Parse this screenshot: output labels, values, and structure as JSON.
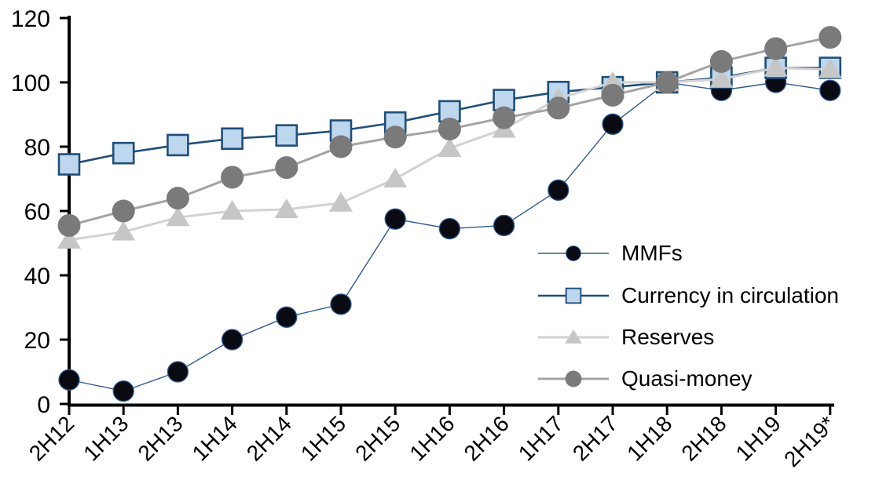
{
  "chart_data": {
    "type": "line",
    "title": "",
    "xlabel": "",
    "ylabel": "",
    "categories": [
      "2H12",
      "1H13",
      "2H13",
      "1H14",
      "2H14",
      "1H15",
      "2H15",
      "1H16",
      "2H16",
      "1H17",
      "2H17",
      "1H18",
      "2H18",
      "1H19",
      "2H19*"
    ],
    "series": [
      {
        "name": "MMFs",
        "marker": "circle",
        "marker_color": "#0a0a12",
        "line_color": "#2e5a94",
        "values": [
          7.5,
          4,
          10,
          20,
          27,
          31,
          57.5,
          54.5,
          55.5,
          66.5,
          87,
          100,
          97.5,
          100,
          97.5
        ]
      },
      {
        "name": "Currency in circulation",
        "marker": "square",
        "marker_color": "#bdd7ee",
        "line_color": "#1f4e79",
        "values": [
          74.5,
          78,
          80.5,
          82.5,
          83.5,
          85,
          87.5,
          91,
          94.5,
          97,
          98.5,
          100,
          101.5,
          104.5,
          104.5
        ]
      },
      {
        "name": "Reserves",
        "marker": "triangle",
        "marker_color": "#c6c6c6",
        "line_color": "#d2d2d2",
        "values": [
          51,
          53.5,
          58,
          60,
          60.5,
          62.5,
          70,
          79.5,
          85.5,
          95,
          100,
          100,
          101,
          104.5,
          104
        ]
      },
      {
        "name": "Quasi-money",
        "marker": "circle",
        "marker_color": "#7a7a7a",
        "line_color": "#a3a3a3",
        "values": [
          55.5,
          60,
          64,
          70.5,
          73.5,
          80,
          83,
          85.5,
          89,
          92,
          96,
          100,
          106.5,
          110.5,
          114
        ]
      }
    ],
    "ylim": [
      0,
      120
    ],
    "yticks": [
      0,
      20,
      40,
      60,
      80,
      100,
      120
    ],
    "grid": false,
    "legend_position": "inside-right",
    "axis_color": "#000000",
    "background_color": "#ffffff"
  }
}
